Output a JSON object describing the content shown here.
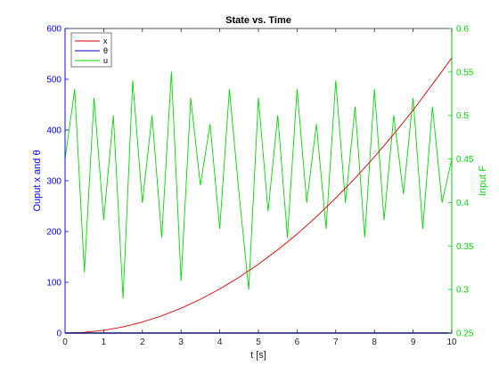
{
  "chart_data": {
    "type": "line",
    "title": "State vs. Time",
    "xlabel": "t [s]",
    "ylabel_left": "Ouput x and θ",
    "ylabel_right": "Input F",
    "xlim": [
      0,
      10
    ],
    "ylim_left": [
      0,
      600
    ],
    "ylim_right": [
      0.25,
      0.6
    ],
    "xticks": [
      0,
      1,
      2,
      3,
      4,
      5,
      6,
      7,
      8,
      9,
      10
    ],
    "yticks_left": [
      0,
      100,
      200,
      300,
      400,
      500,
      600
    ],
    "yticks_right": [
      0.25,
      0.3,
      0.35,
      0.4,
      0.45,
      0.5,
      0.55,
      0.6
    ],
    "xticklabels": [
      "0",
      "1",
      "2",
      "3",
      "4",
      "5",
      "6",
      "7",
      "8",
      "9",
      "10"
    ],
    "yticklabels_left": [
      "0",
      "100",
      "200",
      "300",
      "400",
      "500",
      "600"
    ],
    "yticklabels_right": [
      "0.25",
      "0.3",
      "0.35",
      "0.4",
      "0.45",
      "0.5",
      "0.55",
      "0.6"
    ],
    "grid": false,
    "legend": {
      "placement": "top-left",
      "entries": [
        "x",
        "θ",
        "u"
      ]
    },
    "series": [
      {
        "name": "x",
        "axis": "left",
        "color": "#dd0000",
        "x": [
          0,
          0.5,
          1,
          1.5,
          2,
          2.5,
          3,
          3.5,
          4,
          4.5,
          5,
          5.5,
          6,
          6.5,
          7,
          7.5,
          8,
          8.5,
          9,
          9.5,
          10
        ],
        "values": [
          0,
          1.4,
          5.4,
          12.2,
          21.7,
          33.9,
          48.8,
          66.4,
          86.8,
          109.8,
          135.5,
          164,
          195,
          229,
          266,
          305,
          347,
          392,
          439,
          490,
          542
        ]
      },
      {
        "name": "θ",
        "axis": "left",
        "color": "#0000cc",
        "x": [
          0,
          1,
          2,
          3,
          4,
          5,
          6,
          7,
          8,
          9,
          10
        ],
        "values": [
          0,
          0,
          0,
          0,
          0,
          0,
          0,
          0,
          0,
          0,
          0
        ]
      },
      {
        "name": "u",
        "axis": "right",
        "color": "#00dd00",
        "x": [
          0,
          0.25,
          0.5,
          0.75,
          1,
          1.25,
          1.5,
          1.75,
          2,
          2.25,
          2.5,
          2.75,
          3,
          3.25,
          3.5,
          3.75,
          4,
          4.25,
          4.5,
          4.75,
          5,
          5.25,
          5.5,
          5.75,
          6,
          6.25,
          6.5,
          6.75,
          7,
          7.25,
          7.5,
          7.75,
          8,
          8.25,
          8.5,
          8.75,
          9,
          9.25,
          9.5,
          9.75,
          10
        ],
        "values": [
          0.45,
          0.53,
          0.32,
          0.52,
          0.38,
          0.5,
          0.29,
          0.54,
          0.4,
          0.5,
          0.36,
          0.55,
          0.31,
          0.52,
          0.42,
          0.49,
          0.37,
          0.53,
          0.41,
          0.3,
          0.52,
          0.39,
          0.5,
          0.36,
          0.53,
          0.4,
          0.49,
          0.37,
          0.54,
          0.4,
          0.51,
          0.36,
          0.53,
          0.38,
          0.5,
          0.41,
          0.52,
          0.37,
          0.51,
          0.4,
          0.45
        ]
      }
    ]
  }
}
